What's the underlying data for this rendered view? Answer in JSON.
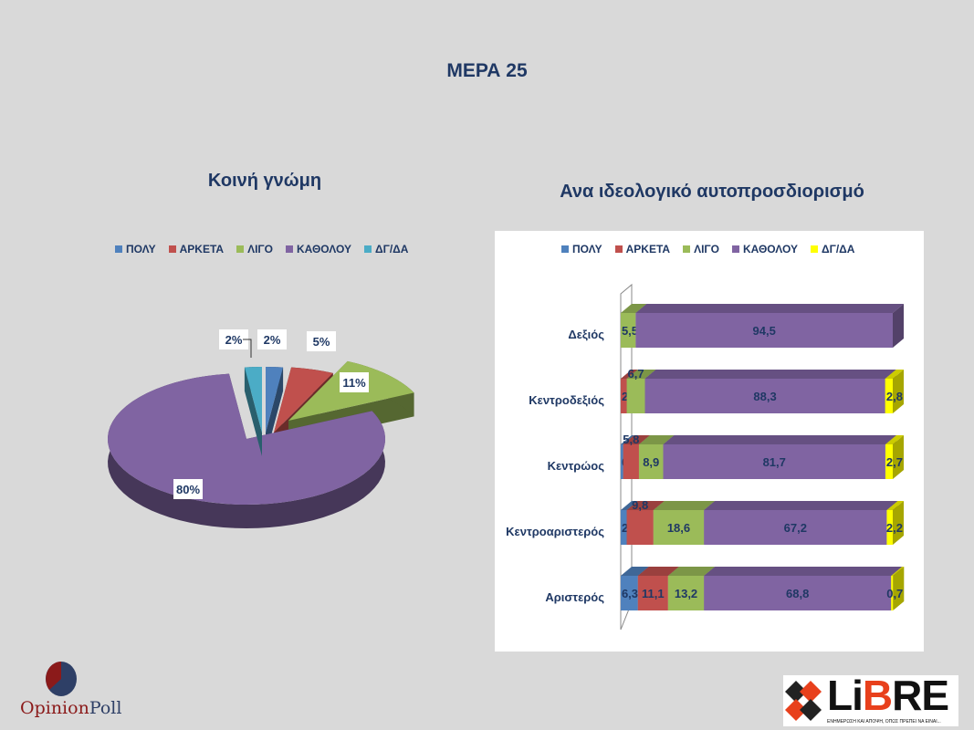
{
  "title": "ΜΕΡΑ 25",
  "chart_data": [
    {
      "type": "pie",
      "title": "Κοινή γνώμη",
      "categories": [
        "ΠΟΛΥ",
        "ΑΡΚΕΤΑ",
        "ΛΙΓΟ",
        "ΚΑΘΟΛΟΥ",
        "ΔΓ/ΔΑ"
      ],
      "values": [
        2,
        5,
        11,
        80,
        2
      ],
      "labels": [
        "2%",
        "5%",
        "11%",
        "80%",
        "2%"
      ],
      "colors": [
        "#4f81bd",
        "#c0504d",
        "#9bbb59",
        "#8064a2",
        "#4bacc6"
      ],
      "legend": "top"
    },
    {
      "type": "bar",
      "orientation": "horizontal",
      "stacked": true,
      "title": "Ανα ιδεολογικό αυτοπροσδιορισμό",
      "categories": [
        "Δεξιός",
        "Κεντροδεξιός",
        "Κεντρώος",
        "Κεντροαριστερός",
        "Αριστερός"
      ],
      "series": [
        {
          "name": "ΠΟΛΥ",
          "color": "#4f81bd",
          "values": [
            0,
            0,
            0.9,
            2.2,
            6.3
          ],
          "labels": [
            "",
            "",
            "0,9",
            "2,2",
            "6,3"
          ]
        },
        {
          "name": "ΑΡΚΕΤΑ",
          "color": "#c0504d",
          "values": [
            0,
            2.2,
            5.8,
            9.8,
            11.1
          ],
          "labels": [
            "",
            "2,2",
            "5,8",
            "9,8",
            "11,1"
          ]
        },
        {
          "name": "ΛΙΓΟ",
          "color": "#9bbb59",
          "values": [
            5.5,
            6.7,
            8.9,
            18.6,
            13.2
          ],
          "labels": [
            "5,5",
            "6,7",
            "8,9",
            "18,6",
            "13,2"
          ]
        },
        {
          "name": "ΚΑΘΟΛΟΥ",
          "color": "#8064a2",
          "values": [
            94.5,
            88.3,
            81.7,
            67.2,
            68.8
          ],
          "labels": [
            "94,5",
            "88,3",
            "81,7",
            "67,2",
            "68,8"
          ]
        },
        {
          "name": "ΔΓ/ΔΑ",
          "color": "#ffff00",
          "values": [
            0,
            2.8,
            2.7,
            2.2,
            0.7
          ],
          "labels": [
            "",
            "2,8",
            "2,7",
            "2,2",
            "0,7"
          ]
        }
      ],
      "xlim": [
        0,
        100
      ],
      "legend": "top"
    }
  ],
  "logos": {
    "opinion_poll": "OpinionPoll",
    "libre": "LiBRE",
    "libre_tagline": "ΕΝΗΜΕΡΩΣΗ ΚΑΙ ΑΠΟΨΗ, ΟΠΩΣ ΠΡΕΠΕΙ ΝΑ ΕΙΝΑΙ..."
  }
}
